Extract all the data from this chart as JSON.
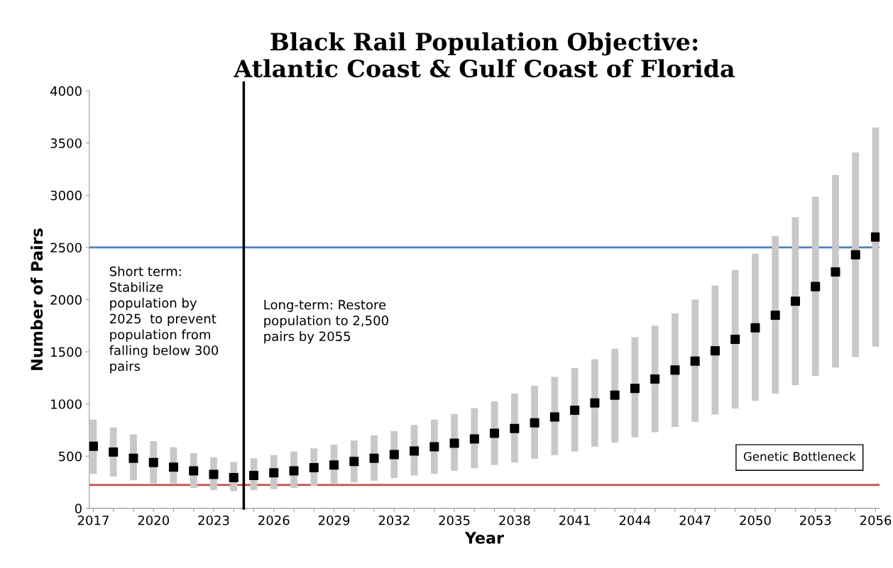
{
  "chart_data": {
    "type": "scatter",
    "title": "Black Rail Population Objective:\nAtlantic Coast & Gulf Coast of Florida",
    "xlabel": "Year",
    "ylabel": "Number of Pairs",
    "x": [
      2017,
      2018,
      2019,
      2020,
      2021,
      2022,
      2023,
      2024,
      2025,
      2026,
      2027,
      2028,
      2029,
      2030,
      2031,
      2032,
      2033,
      2034,
      2035,
      2036,
      2037,
      2038,
      2039,
      2040,
      2041,
      2042,
      2043,
      2044,
      2045,
      2046,
      2047,
      2048,
      2049,
      2050,
      2051,
      2052,
      2053,
      2054,
      2055,
      2056
    ],
    "series": [
      {
        "color": "#000000",
        "marker": "square",
        "values": [
          595,
          540,
          480,
          440,
          395,
          360,
          325,
          295,
          315,
          340,
          360,
          390,
          415,
          450,
          480,
          515,
          550,
          590,
          625,
          665,
          720,
          765,
          820,
          875,
          940,
          1010,
          1085,
          1150,
          1240,
          1325,
          1410,
          1510,
          1620,
          1730,
          1850,
          1985,
          2125,
          2265,
          2430,
          2600
        ],
        "errors": [
          [
            330,
            850
          ],
          [
            305,
            775
          ],
          [
            270,
            710
          ],
          [
            240,
            645
          ],
          [
            230,
            585
          ],
          [
            195,
            530
          ],
          [
            175,
            490
          ],
          [
            165,
            445
          ],
          [
            175,
            480
          ],
          [
            185,
            510
          ],
          [
            195,
            545
          ],
          [
            215,
            575
          ],
          [
            230,
            610
          ],
          [
            250,
            650
          ],
          [
            265,
            700
          ],
          [
            290,
            740
          ],
          [
            315,
            800
          ],
          [
            330,
            850
          ],
          [
            360,
            905
          ],
          [
            385,
            960
          ],
          [
            415,
            1025
          ],
          [
            440,
            1100
          ],
          [
            475,
            1175
          ],
          [
            510,
            1260
          ],
          [
            545,
            1345
          ],
          [
            590,
            1430
          ],
          [
            630,
            1530
          ],
          [
            680,
            1640
          ],
          [
            730,
            1750
          ],
          [
            780,
            1870
          ],
          [
            830,
            2000
          ],
          [
            900,
            2135
          ],
          [
            955,
            2285
          ],
          [
            1030,
            2440
          ],
          [
            1100,
            2610
          ],
          [
            1180,
            2790
          ],
          [
            1270,
            2985
          ],
          [
            1350,
            3195
          ],
          [
            1450,
            3410
          ],
          [
            1550,
            3650
          ]
        ]
      }
    ],
    "xlim": [
      2016.8,
      2056.2
    ],
    "xticks": [
      2017,
      {
        "value": 2018,
        "label": null
      },
      {
        "value": 2019,
        "label": null
      },
      2020,
      {
        "value": 2021,
        "label": null
      },
      {
        "value": 2022,
        "label": null
      },
      2023,
      {
        "value": 2024,
        "label": null
      },
      {
        "value": 2025,
        "label": null
      },
      2026,
      {
        "value": 2027,
        "label": null
      },
      {
        "value": 2028,
        "label": null
      },
      2029,
      {
        "value": 2030,
        "label": null
      },
      {
        "value": 2031,
        "label": null
      },
      2032,
      {
        "value": 2033,
        "label": null
      },
      {
        "value": 2034,
        "label": null
      },
      2035,
      {
        "value": 2036,
        "label": null
      },
      {
        "value": 2037,
        "label": null
      },
      2038,
      {
        "value": 2039,
        "label": null
      },
      {
        "value": 2040,
        "label": null
      },
      2041,
      {
        "value": 2042,
        "label": null
      },
      {
        "value": 2043,
        "label": null
      },
      2044,
      {
        "value": 2045,
        "label": null
      },
      {
        "value": 2046,
        "label": null
      },
      2047,
      {
        "value": 2048,
        "label": null
      },
      {
        "value": 2049,
        "label": null
      },
      2050,
      {
        "value": 2051,
        "label": null
      },
      {
        "value": 2052,
        "label": null
      },
      2053,
      {
        "value": 2054,
        "label": null
      },
      {
        "value": 2055,
        "label": null
      },
      2056
    ],
    "ylim": [
      0,
      4000
    ],
    "yticks": [
      0,
      500,
      1000,
      1500,
      2000,
      2500,
      3000,
      3500,
      4000
    ],
    "grid": false,
    "legend": false,
    "ref_lines": [
      {
        "axis": "y",
        "value": 2500,
        "color": "#4f81bd"
      },
      {
        "axis": "y",
        "value": 225,
        "color": "#c0504d",
        "label": "Genetic Bottleneck"
      },
      {
        "axis": "x",
        "value": 2024.5,
        "color": "#000000"
      }
    ],
    "annotations": [
      "Short term:\nStabilize\npopulation by\n2025  to prevent\npopulation from\nfalling below 300\npairs",
      "Long-term: Restore\npopulation to 2,500\npairs by 2055"
    ]
  }
}
